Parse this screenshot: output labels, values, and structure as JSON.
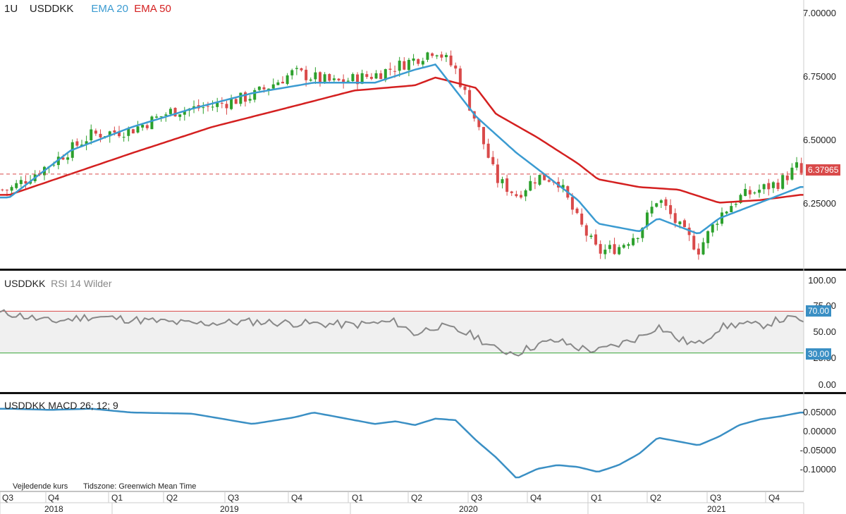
{
  "header": {
    "interval": "1U",
    "symbol": "USDDKK",
    "ema20_label": "EMA 20",
    "ema50_label": "EMA 50"
  },
  "colors": {
    "up": "#2ca02c",
    "down": "#d94a4a",
    "ema20": "#3b9bd1",
    "ema50": "#d42020",
    "rsi_line": "#888888",
    "macd_line": "#3a8fc4",
    "rsi_band": "#f0f0f0",
    "rsi_upper": "#d94a4a",
    "rsi_lower": "#3aa63a",
    "badge_price": "#d94a4a",
    "badge_rsi": "#3a8fc4"
  },
  "price_axis": {
    "ticks": [
      "7.00000",
      "6.75000",
      "6.50000",
      "6.25000"
    ],
    "current": "6.37965"
  },
  "rsi": {
    "title": "USDDKK",
    "subtitle": "RSI 14 Wilder",
    "ticks": [
      "100.00",
      "75.00",
      "50.00",
      "25.00",
      "0.00"
    ],
    "upper_badge": "70.00",
    "lower_badge": "30.00"
  },
  "macd": {
    "title": "USDDKK  MACD 26; 12; 9",
    "ticks": [
      "0.05000",
      "0.00000",
      "-0.05000",
      "-0.10000"
    ]
  },
  "footer": {
    "note": "Vejledende kurs",
    "timezone": "Tidszone: Greenwich Mean Time"
  },
  "time_axis": {
    "quarters": [
      "Q3",
      "Q4",
      "Q1",
      "Q2",
      "Q3",
      "Q4",
      "Q1",
      "Q2",
      "Q3",
      "Q4",
      "Q1",
      "Q2",
      "Q3",
      "Q4"
    ],
    "years": [
      "2018",
      "2019",
      "2020",
      "2021"
    ]
  },
  "chart_data": {
    "type": "candlestick",
    "symbol": "USDDKK",
    "interval": "1U",
    "price_ylim": [
      6.02,
      7.02
    ],
    "current_price": 6.37965,
    "rsi_ylim": [
      0,
      100
    ],
    "rsi_levels": [
      70,
      30
    ],
    "macd_ylim": [
      -0.13,
      0.06
    ],
    "anchors": [
      {
        "date": "2018-07",
        "close": 6.32
      },
      {
        "date": "2018-09",
        "close": 6.42
      },
      {
        "date": "2018-11",
        "close": 6.53
      },
      {
        "date": "2019-01",
        "close": 6.55
      },
      {
        "date": "2019-03",
        "close": 6.62
      },
      {
        "date": "2019-05",
        "close": 6.64
      },
      {
        "date": "2019-07",
        "close": 6.68
      },
      {
        "date": "2019-09",
        "close": 6.77
      },
      {
        "date": "2019-11",
        "close": 6.73
      },
      {
        "date": "2020-01",
        "close": 6.76
      },
      {
        "date": "2020-03",
        "close": 6.82
      },
      {
        "date": "2020-04",
        "close": 6.86
      },
      {
        "date": "2020-05",
        "close": 6.78
      },
      {
        "date": "2020-06",
        "close": 6.58
      },
      {
        "date": "2020-07",
        "close": 6.36
      },
      {
        "date": "2020-08",
        "close": 6.3
      },
      {
        "date": "2020-09",
        "close": 6.37
      },
      {
        "date": "2020-10",
        "close": 6.36
      },
      {
        "date": "2020-11",
        "close": 6.2
      },
      {
        "date": "2020-12",
        "close": 6.08
      },
      {
        "date": "2021-01",
        "close": 6.1
      },
      {
        "date": "2021-02",
        "close": 6.16
      },
      {
        "date": "2021-03",
        "close": 6.29
      },
      {
        "date": "2021-04",
        "close": 6.18
      },
      {
        "date": "2021-05",
        "close": 6.09
      },
      {
        "date": "2021-06",
        "close": 6.22
      },
      {
        "date": "2021-07",
        "close": 6.29
      },
      {
        "date": "2021-08",
        "close": 6.32
      },
      {
        "date": "2021-09",
        "close": 6.35
      },
      {
        "date": "2021-10",
        "close": 6.42
      },
      {
        "date": "2021-10",
        "close": 6.38
      }
    ],
    "ema20_anchors": [
      {
        "date": "2018-07",
        "value": 6.29
      },
      {
        "date": "2018-10",
        "value": 6.47
      },
      {
        "date": "2019-01",
        "value": 6.56
      },
      {
        "date": "2019-04",
        "value": 6.63
      },
      {
        "date": "2019-07",
        "value": 6.69
      },
      {
        "date": "2019-10",
        "value": 6.73
      },
      {
        "date": "2020-01",
        "value": 6.73
      },
      {
        "date": "2020-03",
        "value": 6.78
      },
      {
        "date": "2020-04",
        "value": 6.8
      },
      {
        "date": "2020-06",
        "value": 6.6
      },
      {
        "date": "2020-08",
        "value": 6.46
      },
      {
        "date": "2020-09",
        "value": 6.4
      },
      {
        "date": "2020-11",
        "value": 6.28
      },
      {
        "date": "2020-12",
        "value": 6.19
      },
      {
        "date": "2021-02",
        "value": 6.16
      },
      {
        "date": "2021-03",
        "value": 6.21
      },
      {
        "date": "2021-05",
        "value": 6.15
      },
      {
        "date": "2021-06",
        "value": 6.21
      },
      {
        "date": "2021-08",
        "value": 6.27
      },
      {
        "date": "2021-10",
        "value": 6.33
      }
    ],
    "ema50_anchors": [
      {
        "date": "2018-07",
        "value": 6.3
      },
      {
        "date": "2018-10",
        "value": 6.38
      },
      {
        "date": "2019-01",
        "value": 6.46
      },
      {
        "date": "2019-05",
        "value": 6.56
      },
      {
        "date": "2019-09",
        "value": 6.64
      },
      {
        "date": "2019-12",
        "value": 6.7
      },
      {
        "date": "2020-03",
        "value": 6.72
      },
      {
        "date": "2020-04",
        "value": 6.75
      },
      {
        "date": "2020-06",
        "value": 6.71
      },
      {
        "date": "2020-07",
        "value": 6.61
      },
      {
        "date": "2020-09",
        "value": 6.52
      },
      {
        "date": "2020-11",
        "value": 6.42
      },
      {
        "date": "2020-12",
        "value": 6.36
      },
      {
        "date": "2021-02",
        "value": 6.33
      },
      {
        "date": "2021-04",
        "value": 6.32
      },
      {
        "date": "2021-06",
        "value": 6.27
      },
      {
        "date": "2021-08",
        "value": 6.28
      },
      {
        "date": "2021-10",
        "value": 6.3
      }
    ],
    "rsi_anchors": [
      {
        "date": "2018-07",
        "value": 68
      },
      {
        "date": "2018-09",
        "value": 60
      },
      {
        "date": "2018-11",
        "value": 65
      },
      {
        "date": "2019-01",
        "value": 62
      },
      {
        "date": "2019-04",
        "value": 58
      },
      {
        "date": "2019-07",
        "value": 60
      },
      {
        "date": "2019-10",
        "value": 58
      },
      {
        "date": "2019-12",
        "value": 57
      },
      {
        "date": "2020-02",
        "value": 60
      },
      {
        "date": "2020-03",
        "value": 48
      },
      {
        "date": "2020-04",
        "value": 56
      },
      {
        "date": "2020-05",
        "value": 52
      },
      {
        "date": "2020-06",
        "value": 46
      },
      {
        "date": "2020-07",
        "value": 33
      },
      {
        "date": "2020-08",
        "value": 30
      },
      {
        "date": "2020-09",
        "value": 38
      },
      {
        "date": "2020-10",
        "value": 42
      },
      {
        "date": "2020-11",
        "value": 35
      },
      {
        "date": "2020-12",
        "value": 32
      },
      {
        "date": "2021-01",
        "value": 38
      },
      {
        "date": "2021-02",
        "value": 45
      },
      {
        "date": "2021-03",
        "value": 56
      },
      {
        "date": "2021-04",
        "value": 43
      },
      {
        "date": "2021-05",
        "value": 38
      },
      {
        "date": "2021-06",
        "value": 54
      },
      {
        "date": "2021-07",
        "value": 58
      },
      {
        "date": "2021-08",
        "value": 56
      },
      {
        "date": "2021-09",
        "value": 62
      },
      {
        "date": "2021-10",
        "value": 63
      },
      {
        "date": "2021-10",
        "value": 58
      }
    ],
    "macd_anchors": [
      {
        "date": "2018-07",
        "value": 0.058
      },
      {
        "date": "2018-09",
        "value": 0.055
      },
      {
        "date": "2018-11",
        "value": 0.058
      },
      {
        "date": "2019-01",
        "value": 0.048
      },
      {
        "date": "2019-04",
        "value": 0.045
      },
      {
        "date": "2019-07",
        "value": 0.018
      },
      {
        "date": "2019-09",
        "value": 0.035
      },
      {
        "date": "2019-10",
        "value": 0.048
      },
      {
        "date": "2019-12",
        "value": 0.028
      },
      {
        "date": "2020-01",
        "value": 0.018
      },
      {
        "date": "2020-02",
        "value": 0.025
      },
      {
        "date": "2020-03",
        "value": 0.015
      },
      {
        "date": "2020-04",
        "value": 0.032
      },
      {
        "date": "2020-05",
        "value": 0.028
      },
      {
        "date": "2020-06",
        "value": -0.025
      },
      {
        "date": "2020-07",
        "value": -0.07
      },
      {
        "date": "2020-08",
        "value": -0.125
      },
      {
        "date": "2020-09",
        "value": -0.1
      },
      {
        "date": "2020-10",
        "value": -0.09
      },
      {
        "date": "2020-11",
        "value": -0.095
      },
      {
        "date": "2020-12",
        "value": -0.108
      },
      {
        "date": "2021-01",
        "value": -0.09
      },
      {
        "date": "2021-02",
        "value": -0.06
      },
      {
        "date": "2021-03",
        "value": -0.018
      },
      {
        "date": "2021-04",
        "value": -0.028
      },
      {
        "date": "2021-05",
        "value": -0.038
      },
      {
        "date": "2021-06",
        "value": -0.015
      },
      {
        "date": "2021-07",
        "value": 0.015
      },
      {
        "date": "2021-08",
        "value": 0.03
      },
      {
        "date": "2021-09",
        "value": 0.038
      },
      {
        "date": "2021-10",
        "value": 0.048
      }
    ]
  }
}
